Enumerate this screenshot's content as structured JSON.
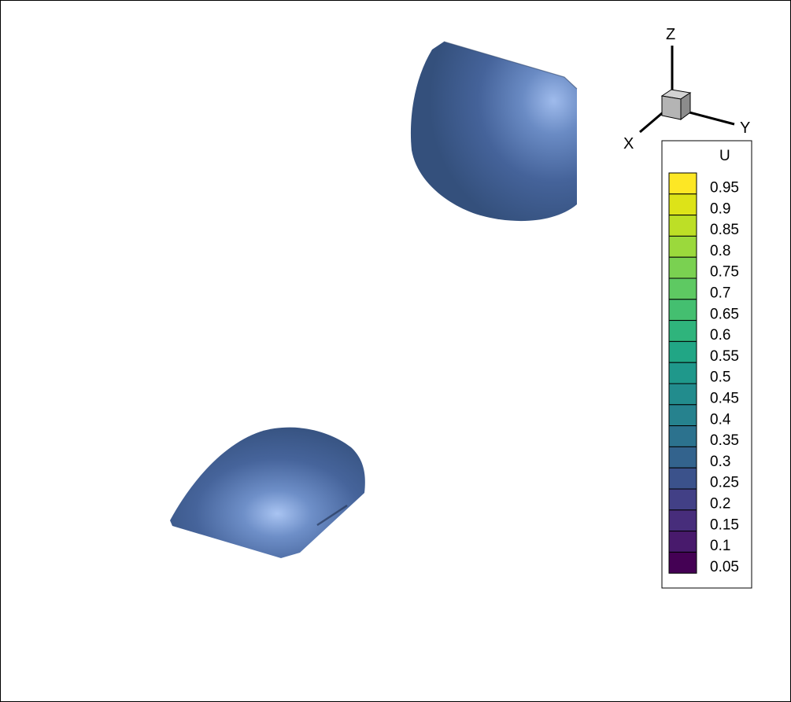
{
  "axes_triad": {
    "x_label": "X",
    "y_label": "Y",
    "z_label": "Z"
  },
  "colorbar": {
    "variable": "U",
    "levels": [
      0.95,
      0.9,
      0.85,
      0.8,
      0.75,
      0.7,
      0.65,
      0.6,
      0.55,
      0.5,
      0.45,
      0.4,
      0.35,
      0.3,
      0.25,
      0.2,
      0.15,
      0.1,
      0.05
    ],
    "labels": [
      "0.95",
      "0.9",
      "0.85",
      "0.8",
      "0.75",
      "0.7",
      "0.65",
      "0.6",
      "0.55",
      "0.5",
      "0.45",
      "0.4",
      "0.35",
      "0.3",
      "0.25",
      "0.2",
      "0.15",
      "0.1",
      "0.05"
    ],
    "colors": [
      "#fde725",
      "#dde318",
      "#bddf26",
      "#9bd93c",
      "#7ad151",
      "#5ec962",
      "#44bf70",
      "#2fb47c",
      "#21a685",
      "#1f988b",
      "#228c8d",
      "#26828e",
      "#2c728e",
      "#33638d",
      "#3b528b",
      "#424086",
      "#472d7b",
      "#481a6c",
      "#440154"
    ]
  },
  "iso_surfaces": {
    "color": "#3d5580",
    "highlight": "#a7c2ef"
  }
}
